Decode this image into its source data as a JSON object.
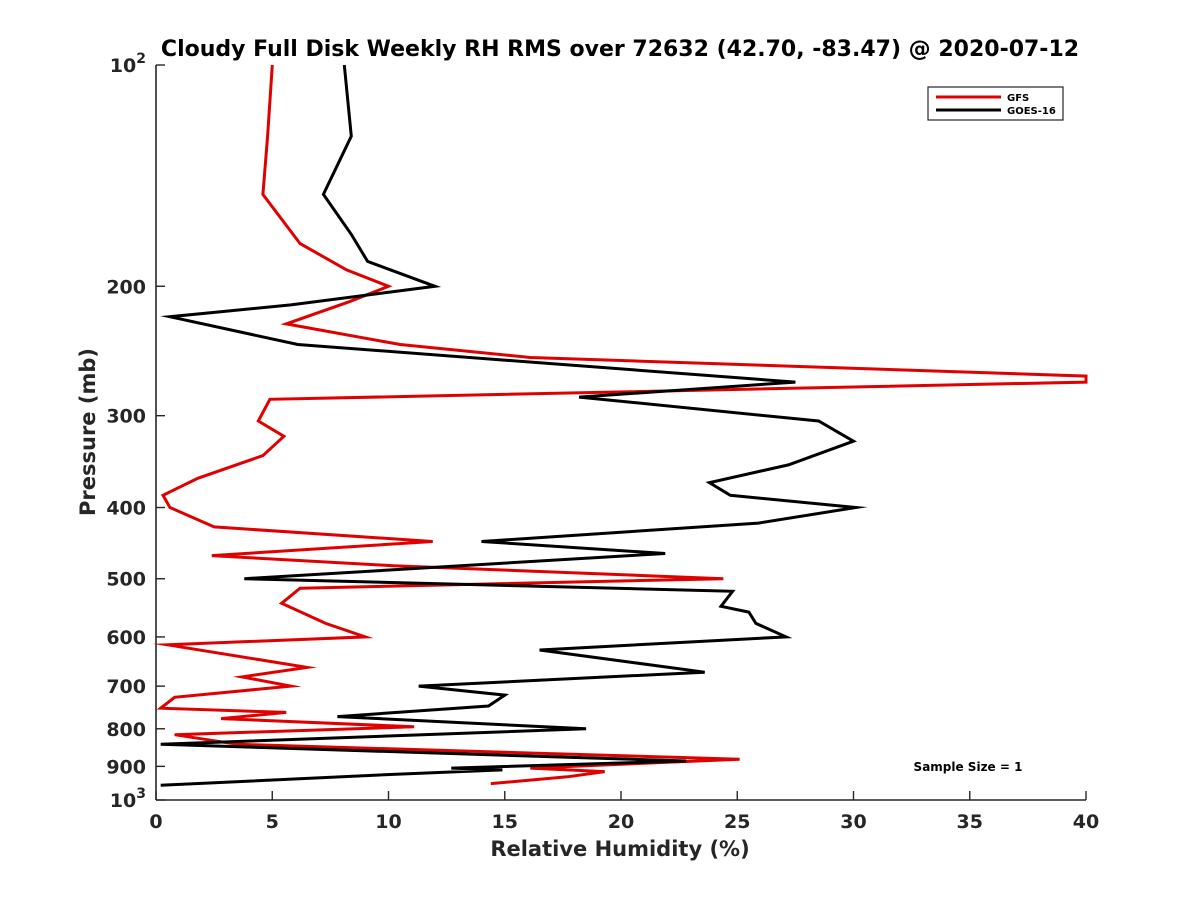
{
  "chart_data": {
    "type": "line",
    "title": "Cloudy Full Disk Weekly RH RMS over 72632 (42.70, -83.47) @ 2020-07-12",
    "xlabel": "Relative Humidity (%)",
    "ylabel": "Pressure (mb)",
    "xlim": [
      0,
      40
    ],
    "ylim": [
      100,
      1000
    ],
    "y_scale": "log",
    "y_reversed": true,
    "grid": false,
    "legend_position": "top-right",
    "x_ticks": [
      0,
      5,
      10,
      15,
      20,
      25,
      30,
      35,
      40
    ],
    "x_tick_labels": [
      "0",
      "5",
      "10",
      "15",
      "20",
      "25",
      "30",
      "35",
      "40"
    ],
    "y_ticks": [
      100,
      200,
      300,
      400,
      500,
      600,
      700,
      800,
      900,
      1000
    ],
    "y_tick_labels": [
      {
        "base": "10",
        "exp": "2"
      },
      {
        "base": "200",
        "exp": ""
      },
      {
        "base": "300",
        "exp": ""
      },
      {
        "base": "400",
        "exp": ""
      },
      {
        "base": "500",
        "exp": ""
      },
      {
        "base": "600",
        "exp": ""
      },
      {
        "base": "700",
        "exp": ""
      },
      {
        "base": "800",
        "exp": ""
      },
      {
        "base": "900",
        "exp": ""
      },
      {
        "base": "10",
        "exp": "3"
      }
    ],
    "annotation": "Sample Size = 1",
    "series": [
      {
        "name": "GFS",
        "color": "#e00000",
        "points": [
          [
            5.0,
            100
          ],
          [
            4.8,
            125
          ],
          [
            4.6,
            150
          ],
          [
            6.2,
            175
          ],
          [
            8.2,
            190
          ],
          [
            10.0,
            200
          ],
          [
            8.3,
            210
          ],
          [
            5.6,
            225
          ],
          [
            10.5,
            240
          ],
          [
            16.1,
            250
          ],
          [
            40,
            265
          ],
          [
            40,
            270
          ],
          [
            4.9,
            285
          ],
          [
            4.4,
            305
          ],
          [
            5.5,
            320
          ],
          [
            4.6,
            340
          ],
          [
            1.8,
            365
          ],
          [
            0.3,
            385
          ],
          [
            0.6,
            400
          ],
          [
            2.5,
            425
          ],
          [
            11.9,
            445
          ],
          [
            2.4,
            465
          ],
          [
            10.2,
            480
          ],
          [
            24.4,
            500
          ],
          [
            6.2,
            515
          ],
          [
            5.4,
            540
          ],
          [
            7.3,
            575
          ],
          [
            9.0,
            600
          ],
          [
            0.5,
            615
          ],
          [
            6.5,
            660
          ],
          [
            3.7,
            680
          ],
          [
            5.8,
            700
          ],
          [
            0.8,
            725
          ],
          [
            0.2,
            750
          ],
          [
            5.6,
            760
          ],
          [
            2.8,
            775
          ],
          [
            11.1,
            795
          ],
          [
            0.8,
            815
          ],
          [
            3.5,
            840
          ],
          [
            25.1,
            880
          ],
          [
            16.1,
            905
          ],
          [
            19.3,
            915
          ],
          [
            17.7,
            930
          ],
          [
            14.4,
            950
          ]
        ]
      },
      {
        "name": "GOES-16",
        "color": "#000000",
        "points": [
          [
            8.1,
            100
          ],
          [
            8.4,
            125
          ],
          [
            7.2,
            150
          ],
          [
            8.4,
            170
          ],
          [
            9.1,
            185
          ],
          [
            12.0,
            200
          ],
          [
            5.8,
            212
          ],
          [
            0.6,
            220
          ],
          [
            6.1,
            240
          ],
          [
            27.5,
            270
          ],
          [
            18.2,
            283
          ],
          [
            28.5,
            305
          ],
          [
            30.0,
            325
          ],
          [
            27.2,
            350
          ],
          [
            23.8,
            370
          ],
          [
            24.7,
            385
          ],
          [
            30.1,
            400
          ],
          [
            25.9,
            420
          ],
          [
            14.0,
            445
          ],
          [
            21.9,
            462
          ],
          [
            3.8,
            500
          ],
          [
            24.8,
            520
          ],
          [
            24.3,
            545
          ],
          [
            25.5,
            555
          ],
          [
            25.8,
            575
          ],
          [
            27.1,
            600
          ],
          [
            16.5,
            625
          ],
          [
            20.5,
            650
          ],
          [
            23.6,
            670
          ],
          [
            11.3,
            700
          ],
          [
            15.0,
            720
          ],
          [
            14.3,
            745
          ],
          [
            7.8,
            770
          ],
          [
            18.5,
            800
          ],
          [
            0.2,
            840
          ],
          [
            22.8,
            885
          ],
          [
            12.7,
            905
          ],
          [
            14.9,
            910
          ],
          [
            9.5,
            925
          ],
          [
            0.2,
            955
          ]
        ]
      }
    ]
  }
}
